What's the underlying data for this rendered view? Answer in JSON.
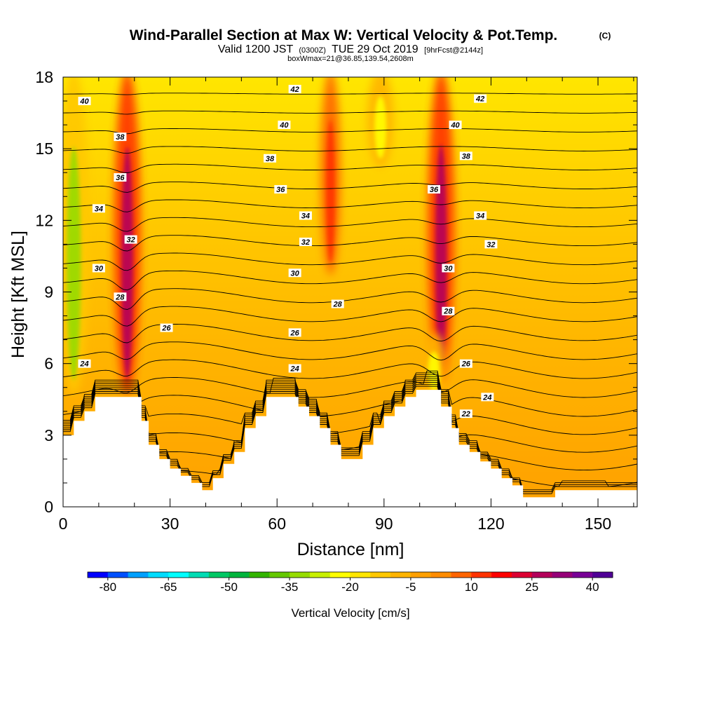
{
  "chart_data": {
    "type": "heatmap",
    "title": "Wind-Parallel Section at Max W: Vertical Velocity & Pot.Temp.",
    "title_mark": "(C)",
    "subtitle_parts": [
      "Valid 1200 JST",
      "(0300Z)",
      "TUE 29 Oct 2019",
      "[9hrFcst@2144z]"
    ],
    "subtitle2": "boxWmax=21@36.85,139.54,2608m",
    "xlabel": "Distance [nm]",
    "ylabel": "Height [Kft MSL]",
    "xlim": [
      0,
      161
    ],
    "ylim": [
      0,
      18
    ],
    "x_ticks": [
      0,
      30,
      60,
      90,
      120,
      150
    ],
    "x_tick_labels": [
      "0",
      "30",
      "60",
      "90",
      "120",
      "150"
    ],
    "y_ticks": [
      0,
      3,
      6,
      9,
      12,
      15,
      18
    ],
    "y_tick_labels": [
      "0",
      "3",
      "6",
      "9",
      "12",
      "15",
      "18"
    ],
    "colorbar": {
      "title": "Vertical Velocity [cm/s]",
      "min": -85,
      "step": 5,
      "tick_values": [
        -80,
        -65,
        -50,
        -35,
        -20,
        -5,
        10,
        25,
        40
      ],
      "tick_labels": [
        "-80",
        "-65",
        "-50",
        "-35",
        "-20",
        "-5",
        "10",
        "25",
        "40"
      ],
      "colors": [
        "#0000ff",
        "#0050ff",
        "#00a0ff",
        "#00dcff",
        "#00ffff",
        "#00dcb4",
        "#00c864",
        "#00b43c",
        "#32b400",
        "#64c800",
        "#96dc00",
        "#c8f000",
        "#ffff00",
        "#ffe600",
        "#ffc800",
        "#ffb400",
        "#ffa000",
        "#ff8c00",
        "#ff6400",
        "#ff3200",
        "#ff0000",
        "#dc0032",
        "#b4005a",
        "#960078",
        "#780096",
        "#500096"
      ]
    },
    "updrafts": [
      {
        "x": 18,
        "z_bottom": 5.0,
        "z_top": 18,
        "w": 25
      },
      {
        "x": 106,
        "z_bottom": 5.5,
        "z_top": 18,
        "w": 25
      },
      {
        "x": 75,
        "z_bottom": 10.0,
        "z_top": 18,
        "w": 12
      }
    ],
    "downdrafts": [
      {
        "x": 3,
        "z_bottom": 5.0,
        "z_top": 18,
        "w": -35
      },
      {
        "x": 89,
        "z_bottom": 14.5,
        "z_top": 18,
        "w": -25
      },
      {
        "x": 104,
        "z_bottom": 4.8,
        "z_top": 7.0,
        "w": -25
      }
    ],
    "terrain": [
      [
        0,
        3.0
      ],
      [
        3,
        3.0
      ],
      [
        3,
        3.6
      ],
      [
        6,
        3.6
      ],
      [
        6,
        4.0
      ],
      [
        9,
        4.0
      ],
      [
        9,
        4.6
      ],
      [
        22,
        4.6
      ],
      [
        22,
        3.6
      ],
      [
        24,
        3.6
      ],
      [
        24,
        2.6
      ],
      [
        27,
        2.6
      ],
      [
        27,
        2.0
      ],
      [
        30,
        2.0
      ],
      [
        30,
        1.6
      ],
      [
        33,
        1.6
      ],
      [
        33,
        1.3
      ],
      [
        36,
        1.3
      ],
      [
        36,
        1.0
      ],
      [
        39,
        1.0
      ],
      [
        39,
        0.7
      ],
      [
        42,
        0.7
      ],
      [
        42,
        1.2
      ],
      [
        45,
        1.2
      ],
      [
        45,
        1.8
      ],
      [
        48,
        1.8
      ],
      [
        48,
        2.3
      ],
      [
        51,
        2.3
      ],
      [
        51,
        3.3
      ],
      [
        54,
        3.3
      ],
      [
        54,
        3.8
      ],
      [
        57,
        3.8
      ],
      [
        57,
        4.6
      ],
      [
        66,
        4.6
      ],
      [
        66,
        4.2
      ],
      [
        69,
        4.2
      ],
      [
        69,
        3.8
      ],
      [
        72,
        3.8
      ],
      [
        72,
        3.3
      ],
      [
        75,
        3.3
      ],
      [
        75,
        2.6
      ],
      [
        78,
        2.6
      ],
      [
        78,
        2.0
      ],
      [
        84,
        2.0
      ],
      [
        84,
        2.6
      ],
      [
        87,
        2.6
      ],
      [
        87,
        3.3
      ],
      [
        90,
        3.3
      ],
      [
        90,
        3.8
      ],
      [
        93,
        3.8
      ],
      [
        93,
        4.2
      ],
      [
        96,
        4.2
      ],
      [
        96,
        4.6
      ],
      [
        99,
        4.6
      ],
      [
        99,
        4.9
      ],
      [
        106,
        4.9
      ],
      [
        106,
        4.2
      ],
      [
        109,
        4.2
      ],
      [
        109,
        3.3
      ],
      [
        111,
        3.3
      ],
      [
        111,
        2.6
      ],
      [
        114,
        2.6
      ],
      [
        114,
        2.3
      ],
      [
        117,
        2.3
      ],
      [
        117,
        1.9
      ],
      [
        120,
        1.9
      ],
      [
        120,
        1.6
      ],
      [
        123,
        1.6
      ],
      [
        123,
        1.2
      ],
      [
        126,
        1.2
      ],
      [
        126,
        0.9
      ],
      [
        129,
        0.9
      ],
      [
        129,
        0.4
      ],
      [
        138,
        0.4
      ],
      [
        138,
        0.7
      ],
      [
        161,
        0.7
      ]
    ],
    "theta_levels": [
      {
        "value": 18,
        "label": ""
      },
      {
        "value": 19,
        "label": ""
      },
      {
        "value": 20,
        "label": ""
      },
      {
        "value": 21,
        "label": ""
      },
      {
        "value": 22,
        "label": "22"
      },
      {
        "value": 23,
        "label": ""
      },
      {
        "value": 24,
        "label": "24"
      },
      {
        "value": 25,
        "label": ""
      },
      {
        "value": 26,
        "label": "26"
      },
      {
        "value": 27,
        "label": ""
      },
      {
        "value": 28,
        "label": "28"
      },
      {
        "value": 29,
        "label": ""
      },
      {
        "value": 30,
        "label": "30"
      },
      {
        "value": 31,
        "label": ""
      },
      {
        "value": 32,
        "label": "32"
      },
      {
        "value": 33,
        "label": ""
      },
      {
        "value": 34,
        "label": "34"
      },
      {
        "value": 35,
        "label": ""
      },
      {
        "value": 36,
        "label": "36"
      },
      {
        "value": 37,
        "label": ""
      },
      {
        "value": 38,
        "label": "38"
      },
      {
        "value": 39,
        "label": ""
      },
      {
        "value": 40,
        "label": "40"
      },
      {
        "value": 41,
        "label": ""
      },
      {
        "value": 42,
        "label": "42"
      },
      {
        "value": 43,
        "label": ""
      }
    ],
    "contour_labels": [
      {
        "text": "40",
        "x": 6,
        "z": 17.0
      },
      {
        "text": "38",
        "x": 16,
        "z": 15.5
      },
      {
        "text": "36",
        "x": 16,
        "z": 13.8
      },
      {
        "text": "34",
        "x": 10,
        "z": 12.5
      },
      {
        "text": "32",
        "x": 19,
        "z": 11.2
      },
      {
        "text": "30",
        "x": 10,
        "z": 10.0
      },
      {
        "text": "28",
        "x": 16,
        "z": 8.8
      },
      {
        "text": "26",
        "x": 29,
        "z": 7.5
      },
      {
        "text": "24",
        "x": 6,
        "z": 6.0
      },
      {
        "text": "42",
        "x": 65,
        "z": 17.5
      },
      {
        "text": "40",
        "x": 62,
        "z": 16.0
      },
      {
        "text": "38",
        "x": 58,
        "z": 14.6
      },
      {
        "text": "36",
        "x": 61,
        "z": 13.3
      },
      {
        "text": "34",
        "x": 68,
        "z": 12.2
      },
      {
        "text": "32",
        "x": 68,
        "z": 11.1
      },
      {
        "text": "30",
        "x": 65,
        "z": 9.8
      },
      {
        "text": "28",
        "x": 77,
        "z": 8.5
      },
      {
        "text": "26",
        "x": 65,
        "z": 7.3
      },
      {
        "text": "24",
        "x": 65,
        "z": 5.8
      },
      {
        "text": "42",
        "x": 117,
        "z": 17.1
      },
      {
        "text": "40",
        "x": 110,
        "z": 16.0
      },
      {
        "text": "38",
        "x": 113,
        "z": 14.7
      },
      {
        "text": "36",
        "x": 104,
        "z": 13.3
      },
      {
        "text": "34",
        "x": 117,
        "z": 12.2
      },
      {
        "text": "32",
        "x": 120,
        "z": 11.0
      },
      {
        "text": "30",
        "x": 108,
        "z": 10.0
      },
      {
        "text": "28",
        "x": 108,
        "z": 8.2
      },
      {
        "text": "26",
        "x": 113,
        "z": 6.0
      },
      {
        "text": "24",
        "x": 119,
        "z": 4.6
      },
      {
        "text": "22",
        "x": 113,
        "z": 3.9
      }
    ]
  }
}
